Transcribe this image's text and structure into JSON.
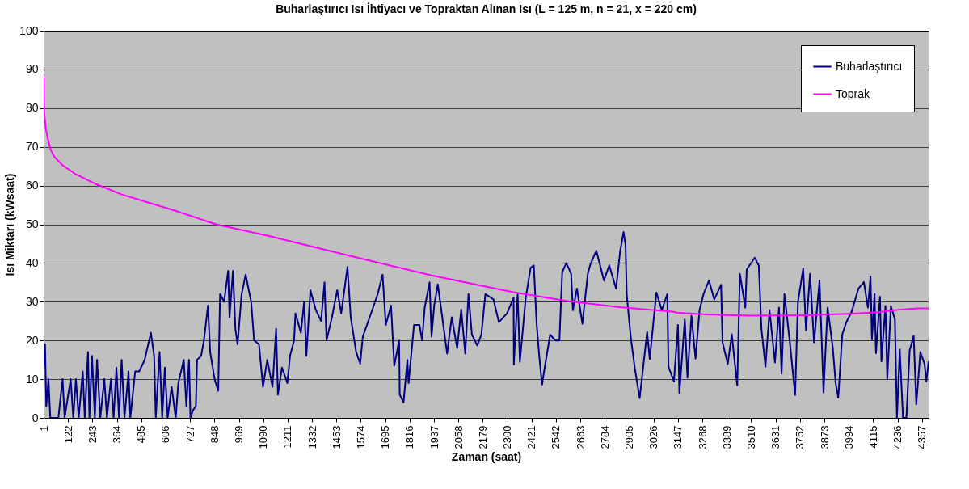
{
  "chart_data": {
    "type": "line",
    "title": "Buharlaştırıcı Isı İhtiyacı ve Topraktan Alınan Isı (L = 125 m, n = 21, x = 220 cm)",
    "xlabel": "Zaman (saat)",
    "ylabel": "Isı Miktarı (kWsaat)",
    "xlim": [
      1,
      4390
    ],
    "xticks": [
      1,
      122,
      243,
      364,
      485,
      606,
      727,
      848,
      969,
      1090,
      1211,
      1332,
      1453,
      1574,
      1695,
      1816,
      1937,
      2058,
      2179,
      2300,
      2421,
      2542,
      2663,
      2784,
      2905,
      3026,
      3147,
      3268,
      3389,
      3510,
      3631,
      3752,
      3873,
      3994,
      4115,
      4236,
      4357
    ],
    "ylim": [
      0,
      100
    ],
    "yticks": [
      0,
      10,
      20,
      30,
      40,
      50,
      60,
      70,
      80,
      90,
      100
    ],
    "grid": "y",
    "legend": "top right",
    "marker": "none",
    "line_style": "solid",
    "series": [
      {
        "name": "Buharlaştırıcı",
        "color": "#000080",
        "x": [
          1,
          8,
          14,
          25,
          34,
          74,
          95,
          105,
          135,
          148,
          161,
          175,
          195,
          205,
          221,
          228,
          241,
          255,
          266,
          282,
          302,
          315,
          335,
          348,
          362,
          375,
          388,
          402,
          422,
          431,
          455,
          475,
          502,
          533,
          549,
          557,
          576,
          589,
          602,
          616,
          636,
          656,
          669,
          696,
          709,
          722,
          729,
          742,
          756,
          762,
          782,
          796,
          816,
          827,
          849,
          867,
          876,
          896,
          916,
          923,
          940,
          952,
          963,
          983,
          1003,
          1030,
          1045,
          1069,
          1089,
          1110,
          1136,
          1154,
          1163,
          1183,
          1210,
          1223,
          1243,
          1250,
          1277,
          1293,
          1304,
          1324,
          1350,
          1377,
          1394,
          1404,
          1431,
          1457,
          1477,
          1508,
          1524,
          1551,
          1571,
          1584,
          1618,
          1658,
          1682,
          1698,
          1724,
          1740,
          1764,
          1767,
          1786,
          1805,
          1811,
          1838,
          1865,
          1878,
          1891,
          1915,
          1925,
          1938,
          1956,
          1978,
          2002,
          2025,
          2052,
          2072,
          2092,
          2108,
          2125,
          2152,
          2172,
          2192,
          2232,
          2259,
          2299,
          2332,
          2333,
          2352,
          2363,
          2392,
          2416,
          2432,
          2446,
          2459,
          2473,
          2486,
          2513,
          2539,
          2559,
          2573,
          2593,
          2617,
          2626,
          2646,
          2673,
          2700,
          2713,
          2742,
          2780,
          2806,
          2840,
          2860,
          2877,
          2887,
          2893,
          2913,
          2933,
          2957,
          2973,
          2994,
          3007,
          3040,
          3067,
          3094,
          3100,
          3127,
          3147,
          3154,
          3181,
          3194,
          3214,
          3234,
          3254,
          3274,
          3301,
          3327,
          3361,
          3368,
          3394,
          3414,
          3428,
          3441,
          3454,
          3481,
          3488,
          3528,
          3548,
          3561,
          3581,
          3601,
          3628,
          3648,
          3661,
          3675,
          3702,
          3728,
          3742,
          3768,
          3782,
          3802,
          3822,
          3849,
          3869,
          3889,
          3915,
          3929,
          3942,
          3962,
          3982,
          4009,
          4042,
          4069,
          4089,
          4102,
          4109,
          4122,
          4129,
          4149,
          4156,
          4176,
          4185,
          4203,
          4223,
          4233,
          4247,
          4263,
          4280,
          4296,
          4316,
          4329,
          4349,
          4370,
          4379,
          4390
        ],
        "values": [
          13,
          19,
          3,
          10,
          0,
          0,
          10,
          0,
          10,
          0,
          10,
          0,
          12,
          0,
          17,
          0,
          16,
          0,
          15,
          0,
          10,
          0,
          10,
          0,
          13,
          0,
          15,
          0,
          12,
          0,
          12,
          12,
          15,
          22,
          16,
          0,
          17,
          0,
          13,
          0,
          8,
          0,
          9,
          15,
          3,
          15,
          0,
          2,
          3,
          15,
          16,
          20,
          29,
          17,
          10,
          7,
          32,
          30,
          38,
          26,
          38,
          23,
          19,
          32,
          37,
          30,
          20,
          19,
          8,
          15,
          8,
          23,
          6,
          13,
          9,
          16,
          20,
          27,
          22,
          30,
          16,
          33,
          28,
          25,
          35,
          20,
          26,
          33,
          27,
          39,
          26,
          17,
          14,
          21,
          26,
          32,
          37,
          24,
          29,
          13.5,
          20,
          6,
          4,
          15,
          9,
          24,
          24,
          20,
          28.5,
          35,
          21,
          29,
          34.5,
          26,
          16.6,
          26,
          18,
          28,
          16.6,
          32,
          21.5,
          18.7,
          21.5,
          32,
          30.6,
          24.7,
          27,
          31,
          13.8,
          32,
          14.5,
          31,
          38.7,
          39.4,
          24.3,
          16,
          8.6,
          13,
          21.5,
          20,
          20,
          37.6,
          40,
          37.3,
          27.8,
          33.4,
          24.3,
          37.3,
          39.7,
          43.2,
          35.5,
          39.4,
          33.4,
          42.9,
          48,
          44.6,
          31.7,
          20.8,
          12.8,
          5.1,
          12.4,
          22.2,
          15.2,
          32.4,
          27.8,
          32,
          13.2,
          9.4,
          24,
          6.3,
          25.4,
          10.4,
          26.4,
          15.3,
          27.8,
          32,
          35.5,
          30.6,
          34.4,
          19.5,
          13.9,
          21.6,
          14.6,
          8.4,
          37.2,
          28.5,
          38.3,
          41.4,
          39.3,
          23,
          13.2,
          27.8,
          14.3,
          28.5,
          11.5,
          32,
          19.5,
          5.9,
          29.9,
          38.6,
          22.6,
          37.2,
          19.5,
          35.5,
          6.6,
          28.5,
          18.1,
          9,
          5.2,
          21.6,
          24.7,
          27.5,
          33.4,
          35.1,
          28.5,
          36.5,
          20.2,
          32,
          16.7,
          31.3,
          14.6,
          28.9,
          10.1,
          28.9,
          25.4,
          0,
          17.7,
          0,
          0,
          17.4,
          21.2,
          3.5,
          17,
          13.9,
          9.4,
          14.6
        ]
      },
      {
        "name": "Toprak",
        "color": "#ff00ff",
        "x": [
          1,
          4,
          12,
          21,
          34,
          54,
          94,
          161,
          255,
          389,
          522,
          654,
          855,
          1123,
          1524,
          1925,
          2326,
          2593,
          2859,
          3127,
          3139,
          3288,
          3500,
          3769,
          3997,
          4141,
          4237,
          4337,
          4390
        ],
        "values": [
          88.3,
          78.9,
          74.7,
          72.3,
          69.5,
          67.4,
          65.3,
          62.9,
          60.5,
          57.7,
          55.6,
          53.5,
          50,
          46.9,
          41.8,
          36.8,
          32.5,
          30.2,
          28.6,
          27.4,
          27.2,
          26.7,
          26.4,
          26.5,
          26.9,
          27.3,
          27.9,
          28.3,
          28.3
        ]
      }
    ]
  }
}
